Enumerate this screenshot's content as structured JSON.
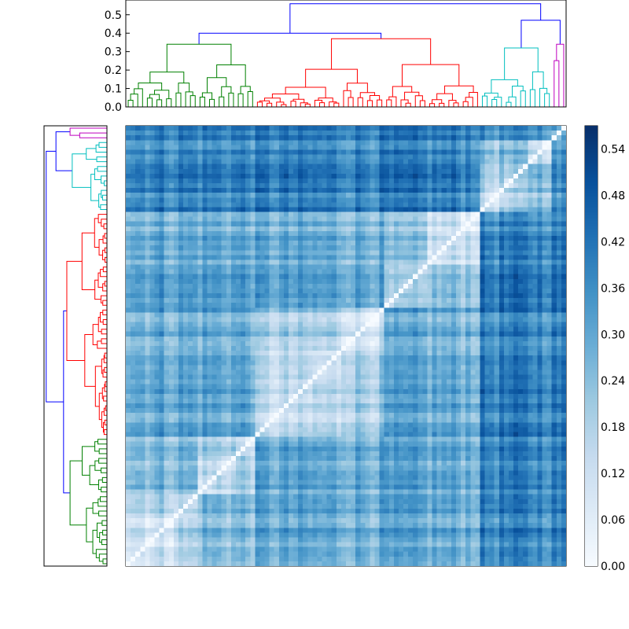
{
  "chart_data": [
    {
      "type": "dendrogram",
      "orientation": "top",
      "y_axis": {
        "ylim": [
          0,
          0.58
        ],
        "ticks": [
          0.0,
          0.1,
          0.2,
          0.3,
          0.4,
          0.5
        ],
        "tick_labels": [
          "0.0",
          "0.1",
          "0.2",
          "0.3",
          "0.4",
          "0.5"
        ]
      },
      "leaf_count": 96,
      "clusters": [
        {
          "color": "#008000",
          "leaves": 27,
          "height": 0.34
        },
        {
          "color": "#ff0000",
          "leaves": 47,
          "height": 0.37
        },
        {
          "color": "#00bfbf",
          "leaves": 15,
          "height": 0.32
        },
        {
          "color": "#bf00bf",
          "leaves": 3,
          "height": 0.34
        }
      ],
      "root_height": 0.56,
      "root_color": "#0000ff"
    },
    {
      "type": "dendrogram",
      "orientation": "left",
      "mirror_of": "top",
      "leaf_count": 96
    },
    {
      "type": "heatmap",
      "rows": 96,
      "cols": 96,
      "matrix": "symmetric distance matrix, diagonal = 0",
      "value_range": [
        0.0,
        0.57
      ],
      "colormap": "Blues"
    },
    {
      "type": "colorbar",
      "range": [
        0.0,
        0.57
      ],
      "ticks": [
        0.0,
        0.06,
        0.12,
        0.18,
        0.24,
        0.3,
        0.36,
        0.42,
        0.48,
        0.54
      ],
      "tick_labels": [
        "0.00",
        "0.06",
        "0.12",
        "0.18",
        "0.24",
        "0.30",
        "0.36",
        "0.42",
        "0.48",
        "0.54"
      ]
    }
  ],
  "colors": {
    "blues_light": "#f7fbff",
    "blues_mid": "#6baed6",
    "blues_dark": "#08306b"
  }
}
